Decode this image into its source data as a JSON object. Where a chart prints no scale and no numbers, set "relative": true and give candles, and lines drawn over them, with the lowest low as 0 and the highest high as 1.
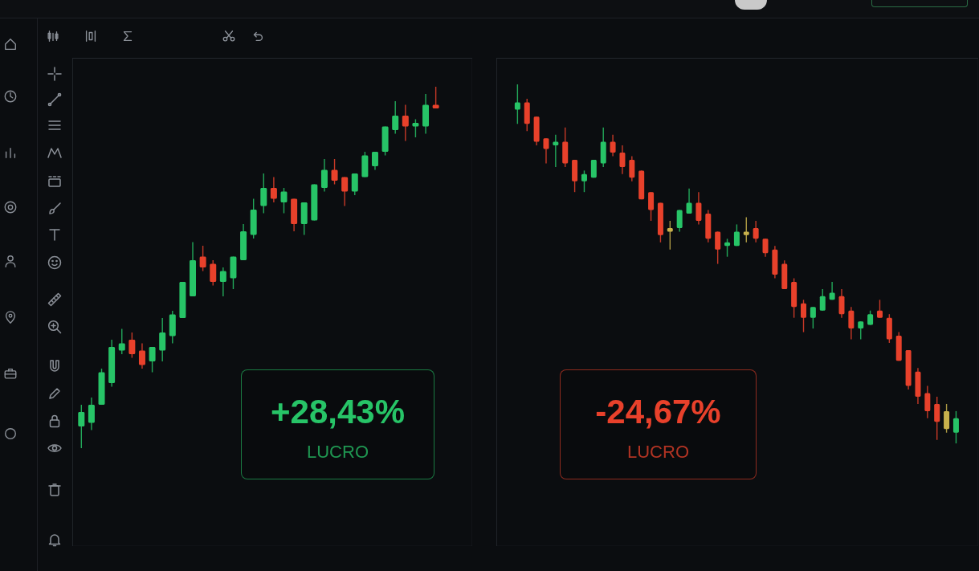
{
  "chart_data": [
    {
      "type": "candlestick",
      "relative": true,
      "categories": [
        null,
        null,
        null,
        null,
        null,
        null,
        null,
        null,
        null,
        null,
        null,
        null,
        null,
        null,
        null,
        null,
        null,
        null,
        null,
        null,
        null,
        null,
        null,
        null,
        null,
        null,
        null,
        null,
        null,
        null,
        null,
        null,
        null,
        null,
        null,
        null
      ],
      "ohlc": [
        [
          0.06,
          0.12,
          0.0,
          0.1
        ],
        [
          0.07,
          0.14,
          0.05,
          0.12
        ],
        [
          0.12,
          0.22,
          0.12,
          0.21
        ],
        [
          0.18,
          0.3,
          0.17,
          0.28
        ],
        [
          0.27,
          0.33,
          0.26,
          0.29
        ],
        [
          0.3,
          0.32,
          0.25,
          0.26
        ],
        [
          0.27,
          0.29,
          0.22,
          0.23
        ],
        [
          0.24,
          0.28,
          0.21,
          0.28
        ],
        [
          0.27,
          0.36,
          0.24,
          0.32
        ],
        [
          0.31,
          0.38,
          0.29,
          0.37
        ],
        [
          0.36,
          0.46,
          0.36,
          0.46
        ],
        [
          0.42,
          0.57,
          0.42,
          0.52
        ],
        [
          0.53,
          0.56,
          0.49,
          0.5
        ],
        [
          0.51,
          0.52,
          0.45,
          0.46
        ],
        [
          0.46,
          0.5,
          0.42,
          0.49
        ],
        [
          0.47,
          0.53,
          0.44,
          0.53
        ],
        [
          0.52,
          0.62,
          0.52,
          0.6
        ],
        [
          0.59,
          0.69,
          0.58,
          0.66
        ],
        [
          0.67,
          0.76,
          0.65,
          0.72
        ],
        [
          0.72,
          0.75,
          0.68,
          0.69
        ],
        [
          0.68,
          0.72,
          0.65,
          0.71
        ],
        [
          0.69,
          0.69,
          0.6,
          0.62
        ],
        [
          0.62,
          0.68,
          0.59,
          0.68
        ],
        [
          0.63,
          0.73,
          0.63,
          0.73
        ],
        [
          0.72,
          0.8,
          0.71,
          0.77
        ],
        [
          0.77,
          0.8,
          0.73,
          0.74
        ],
        [
          0.75,
          0.75,
          0.67,
          0.71
        ],
        [
          0.71,
          0.76,
          0.7,
          0.76
        ],
        [
          0.75,
          0.82,
          0.75,
          0.81
        ],
        [
          0.78,
          0.82,
          0.77,
          0.82
        ],
        [
          0.82,
          0.89,
          0.81,
          0.89
        ],
        [
          0.88,
          0.96,
          0.87,
          0.92
        ],
        [
          0.92,
          0.95,
          0.85,
          0.89
        ],
        [
          0.89,
          0.91,
          0.86,
          0.9
        ],
        [
          0.89,
          0.98,
          0.87,
          0.95
        ],
        [
          0.95,
          1.0,
          0.94,
          0.94
        ]
      ],
      "colors": [
        "#27c467",
        "#27c467",
        "#27c467",
        "#27c467",
        "#27c467",
        "#e8412b",
        "#e8412b",
        "#27c467",
        "#27c467",
        "#27c467",
        "#27c467",
        "#27c467",
        "#e8412b",
        "#e8412b",
        "#27c467",
        "#27c467",
        "#27c467",
        "#27c467",
        "#27c467",
        "#e8412b",
        "#27c467",
        "#e8412b",
        "#27c467",
        "#27c467",
        "#27c467",
        "#e8412b",
        "#e8412b",
        "#27c467",
        "#27c467",
        "#27c467",
        "#27c467",
        "#27c467",
        "#e8412b",
        "#27c467",
        "#27c467",
        "#e8412b"
      ],
      "annotations": [
        "+28,43%",
        "LUCRO"
      ]
    },
    {
      "type": "candlestick",
      "relative": true,
      "categories": [
        null,
        null,
        null,
        null,
        null,
        null,
        null,
        null,
        null,
        null,
        null,
        null,
        null,
        null,
        null,
        null,
        null,
        null,
        null,
        null,
        null,
        null,
        null,
        null,
        null,
        null,
        null,
        null,
        null,
        null,
        null,
        null,
        null,
        null,
        null,
        null,
        null,
        null,
        null,
        null,
        null,
        null,
        null,
        null,
        null,
        null,
        null
      ],
      "ohlc": [
        [
          0.93,
          1.0,
          0.89,
          0.95
        ],
        [
          0.95,
          0.96,
          0.87,
          0.89
        ],
        [
          0.91,
          0.91,
          0.83,
          0.84
        ],
        [
          0.85,
          0.85,
          0.78,
          0.82
        ],
        [
          0.83,
          0.86,
          0.77,
          0.84
        ],
        [
          0.84,
          0.88,
          0.77,
          0.78
        ],
        [
          0.79,
          0.79,
          0.7,
          0.73
        ],
        [
          0.73,
          0.76,
          0.7,
          0.75
        ],
        [
          0.74,
          0.79,
          0.74,
          0.79
        ],
        [
          0.78,
          0.88,
          0.77,
          0.84
        ],
        [
          0.84,
          0.86,
          0.8,
          0.81
        ],
        [
          0.81,
          0.83,
          0.75,
          0.77
        ],
        [
          0.79,
          0.8,
          0.73,
          0.74
        ],
        [
          0.76,
          0.76,
          0.68,
          0.68
        ],
        [
          0.7,
          0.7,
          0.62,
          0.65
        ],
        [
          0.67,
          0.67,
          0.56,
          0.58
        ],
        [
          0.6,
          0.62,
          0.54,
          0.59
        ],
        [
          0.6,
          0.65,
          0.59,
          0.65
        ],
        [
          0.64,
          0.71,
          0.64,
          0.67
        ],
        [
          0.67,
          0.7,
          0.61,
          0.62
        ],
        [
          0.64,
          0.65,
          0.56,
          0.57
        ],
        [
          0.59,
          0.59,
          0.5,
          0.54
        ],
        [
          0.55,
          0.57,
          0.52,
          0.56
        ],
        [
          0.55,
          0.61,
          0.55,
          0.59
        ],
        [
          0.58,
          0.63,
          0.56,
          0.59
        ],
        [
          0.6,
          0.62,
          0.56,
          0.57
        ],
        [
          0.57,
          0.57,
          0.52,
          0.53
        ],
        [
          0.54,
          0.55,
          0.46,
          0.47
        ],
        [
          0.5,
          0.51,
          0.43,
          0.43
        ],
        [
          0.45,
          0.46,
          0.35,
          0.38
        ],
        [
          0.39,
          0.4,
          0.31,
          0.35
        ],
        [
          0.35,
          0.38,
          0.32,
          0.38
        ],
        [
          0.37,
          0.43,
          0.37,
          0.41
        ],
        [
          0.4,
          0.45,
          0.4,
          0.42
        ],
        [
          0.41,
          0.43,
          0.35,
          0.36
        ],
        [
          0.37,
          0.38,
          0.29,
          0.32
        ],
        [
          0.32,
          0.34,
          0.29,
          0.34
        ],
        [
          0.33,
          0.37,
          0.33,
          0.36
        ],
        [
          0.37,
          0.4,
          0.35,
          0.35
        ],
        [
          0.35,
          0.36,
          0.28,
          0.29
        ],
        [
          0.3,
          0.31,
          0.23,
          0.23
        ],
        [
          0.26,
          0.26,
          0.15,
          0.16
        ],
        [
          0.2,
          0.21,
          0.11,
          0.13
        ],
        [
          0.14,
          0.16,
          0.07,
          0.09
        ],
        [
          0.11,
          0.13,
          0.01,
          0.06
        ],
        [
          0.09,
          0.11,
          0.03,
          0.04
        ],
        [
          0.03,
          0.09,
          0.0,
          0.07
        ]
      ],
      "colors": [
        "#27c467",
        "#e8412b",
        "#e8412b",
        "#e8412b",
        "#27c467",
        "#e8412b",
        "#e8412b",
        "#27c467",
        "#27c467",
        "#27c467",
        "#e8412b",
        "#e8412b",
        "#e8412b",
        "#e8412b",
        "#e8412b",
        "#e8412b",
        "#c8b14c",
        "#27c467",
        "#27c467",
        "#e8412b",
        "#e8412b",
        "#e8412b",
        "#27c467",
        "#27c467",
        "#c8b14c",
        "#e8412b",
        "#e8412b",
        "#e8412b",
        "#e8412b",
        "#e8412b",
        "#e8412b",
        "#27c467",
        "#27c467",
        "#27c467",
        "#e8412b",
        "#e8412b",
        "#27c467",
        "#27c467",
        "#e8412b",
        "#e8412b",
        "#e8412b",
        "#e8412b",
        "#e8412b",
        "#e8412b",
        "#e8412b",
        "#c8b14c",
        "#27c467"
      ],
      "annotations": [
        "-24,67%",
        "LUCRO"
      ]
    }
  ]
}
